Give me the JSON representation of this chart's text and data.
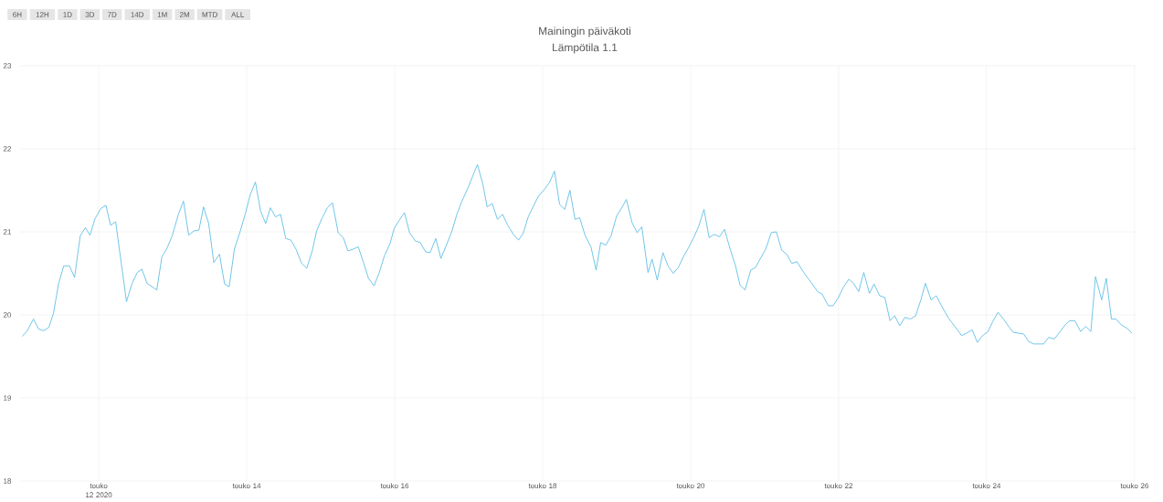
{
  "chart_data": {
    "type": "line",
    "title": "Mainingin päiväkoti",
    "subtitle": "Lämpötila 1.1",
    "annotations": [
      "6H",
      "12H",
      "1D",
      "3D",
      "7D",
      "14D",
      "1M",
      "2M",
      "MTD",
      "ALL"
    ],
    "color": "#4db8e3",
    "grid": true,
    "xlim": [
      "2020-05-10T22:30",
      "2020-05-26T00:20"
    ],
    "ylim": [
      18,
      23
    ],
    "yticks": [
      18,
      19,
      20,
      21,
      22,
      23
    ],
    "xticks": [
      {
        "value": "2020-05-12",
        "label": "touko 12 2020"
      },
      {
        "value": "2020-05-14",
        "label": "touko 14"
      },
      {
        "value": "2020-05-16",
        "label": "touko 16"
      },
      {
        "value": "2020-05-18",
        "label": "touko 18"
      },
      {
        "value": "2020-05-20",
        "label": "touko 20"
      },
      {
        "value": "2020-05-22",
        "label": "touko 22"
      },
      {
        "value": "2020-05-24",
        "label": "touko 24"
      },
      {
        "value": "2020-05-26",
        "label": "touko 26"
      }
    ],
    "x": [
      "2020-05-10T23:10",
      "2020-05-11T00:50",
      "2020-05-11T02:50",
      "2020-05-11T04:30",
      "2020-05-11T06:10",
      "2020-05-11T07:50",
      "2020-05-11T09:20",
      "2020-05-11T11:00",
      "2020-05-11T12:40",
      "2020-05-11T14:30",
      "2020-05-11T16:10",
      "2020-05-11T18:00",
      "2020-05-11T19:40",
      "2020-05-11T21:10",
      "2020-05-11T22:50",
      "2020-05-12T00:40",
      "2020-05-12T02:20",
      "2020-05-12T03:50",
      "2020-05-12T05:30",
      "2020-05-12T09:00",
      "2020-05-12T10:50",
      "2020-05-12T12:30",
      "2020-05-12T14:00",
      "2020-05-12T15:40",
      "2020-05-12T18:50",
      "2020-05-12T20:30",
      "2020-05-12T22:00",
      "2020-05-12T23:50",
      "2020-05-13T01:50",
      "2020-05-13T03:30",
      "2020-05-13T05:10",
      "2020-05-13T06:50",
      "2020-05-13T08:30",
      "2020-05-13T10:00",
      "2020-05-13T11:40",
      "2020-05-13T13:20",
      "2020-05-13T15:10",
      "2020-05-13T16:50",
      "2020-05-13T18:20",
      "2020-05-13T20:00",
      "2020-05-13T21:50",
      "2020-05-13T23:30",
      "2020-05-14T01:10",
      "2020-05-14T02:50",
      "2020-05-14T04:30",
      "2020-05-14T06:10",
      "2020-05-14T07:40",
      "2020-05-14T09:20",
      "2020-05-14T11:00",
      "2020-05-14T12:40",
      "2020-05-14T14:20",
      "2020-05-14T16:00",
      "2020-05-14T17:50",
      "2020-05-14T19:30",
      "2020-05-14T21:20",
      "2020-05-14T22:40",
      "2020-05-15T00:30",
      "2020-05-15T02:10",
      "2020-05-15T03:50",
      "2020-05-15T05:40",
      "2020-05-15T07:20",
      "2020-05-15T08:50",
      "2020-05-15T10:30",
      "2020-05-15T12:10",
      "2020-05-15T14:00",
      "2020-05-15T15:30",
      "2020-05-15T17:20",
      "2020-05-15T19:00",
      "2020-05-15T20:40",
      "2020-05-15T22:30",
      "2020-05-15T23:50",
      "2020-05-16T01:40",
      "2020-05-16T03:10",
      "2020-05-16T04:50",
      "2020-05-16T06:40",
      "2020-05-16T08:20",
      "2020-05-16T10:00",
      "2020-05-16T11:30",
      "2020-05-16T13:20",
      "2020-05-16T15:00",
      "2020-05-16T16:40",
      "2020-05-16T18:30",
      "2020-05-16T20:10",
      "2020-05-16T21:50",
      "2020-05-16T23:40",
      "2020-05-17T02:50",
      "2020-05-17T04:30",
      "2020-05-17T06:00",
      "2020-05-17T07:40",
      "2020-05-17T09:20",
      "2020-05-17T11:00",
      "2020-05-17T12:40",
      "2020-05-17T14:30",
      "2020-05-17T16:10",
      "2020-05-17T17:40",
      "2020-05-17T19:20",
      "2020-05-17T21:00",
      "2020-05-17T22:40",
      "2020-05-18T00:20",
      "2020-05-18T02:10",
      "2020-05-18T03:50",
      "2020-05-18T05:30",
      "2020-05-18T07:10",
      "2020-05-18T08:50",
      "2020-05-18T10:30",
      "2020-05-18T12:00",
      "2020-05-18T13:50",
      "2020-05-18T15:40",
      "2020-05-18T17:20",
      "2020-05-18T18:50",
      "2020-05-18T20:30",
      "2020-05-18T22:10",
      "2020-05-19T00:00",
      "2020-05-19T01:30",
      "2020-05-19T03:10",
      "2020-05-19T05:00",
      "2020-05-19T06:40",
      "2020-05-19T08:10",
      "2020-05-19T10:10",
      "2020-05-19T11:30",
      "2020-05-19T13:10",
      "2020-05-19T15:00",
      "2020-05-19T16:40",
      "2020-05-19T18:20",
      "2020-05-19T20:00",
      "2020-05-19T21:40",
      "2020-05-19T23:20",
      "2020-05-20T01:00",
      "2020-05-20T02:40",
      "2020-05-20T04:20",
      "2020-05-20T06:00",
      "2020-05-20T07:40",
      "2020-05-20T09:20",
      "2020-05-20T11:00",
      "2020-05-20T12:50",
      "2020-05-20T14:30",
      "2020-05-20T16:00",
      "2020-05-20T17:40",
      "2020-05-20T19:30",
      "2020-05-20T21:00",
      "2020-05-20T22:40",
      "2020-05-21T00:20",
      "2020-05-21T02:10",
      "2020-05-21T03:50",
      "2020-05-21T05:30",
      "2020-05-21T07:10",
      "2020-05-21T08:50",
      "2020-05-21T10:30",
      "2020-05-21T12:00",
      "2020-05-21T13:40",
      "2020-05-21T15:20",
      "2020-05-21T17:10",
      "2020-05-21T18:40",
      "2020-05-21T20:40",
      "2020-05-21T22:10",
      "2020-05-21T23:50",
      "2020-05-22T01:30",
      "2020-05-22T03:20",
      "2020-05-22T04:50",
      "2020-05-22T06:30",
      "2020-05-22T08:10",
      "2020-05-22T10:00",
      "2020-05-22T11:30",
      "2020-05-22T13:20",
      "2020-05-22T15:00",
      "2020-05-22T16:40",
      "2020-05-22T18:10",
      "2020-05-22T19:50",
      "2020-05-22T21:30",
      "2020-05-22T23:20",
      "2020-05-23T01:00",
      "2020-05-23T02:40",
      "2020-05-23T04:10",
      "2020-05-23T06:00",
      "2020-05-23T07:40",
      "2020-05-23T09:40",
      "2020-05-23T11:40",
      "2020-05-23T13:30",
      "2020-05-23T15:10",
      "2020-05-23T15:50",
      "2020-05-23T17:30",
      "2020-05-23T19:20",
      "2020-05-23T21:00",
      "2020-05-23T22:40",
      "2020-05-24T00:30",
      "2020-05-24T02:00",
      "2020-05-24T03:40",
      "2020-05-24T05:30",
      "2020-05-24T07:10",
      "2020-05-24T08:40",
      "2020-05-24T10:20",
      "2020-05-24T12:00",
      "2020-05-24T13:40",
      "2020-05-24T15:20",
      "2020-05-24T17:00",
      "2020-05-24T18:30",
      "2020-05-24T20:10",
      "2020-05-24T22:00",
      "2020-05-24T23:40",
      "2020-05-25T01:30",
      "2020-05-25T03:00",
      "2020-05-25T04:40",
      "2020-05-25T06:30",
      "2020-05-25T08:10",
      "2020-05-25T09:50",
      "2020-05-25T11:20",
      "2020-05-25T13:20",
      "2020-05-25T14:50",
      "2020-05-25T16:30",
      "2020-05-25T18:00",
      "2020-05-25T19:40",
      "2020-05-25T21:30",
      "2020-05-25T23:10"
    ],
    "values": [
      19.74,
      19.81,
      19.95,
      19.83,
      19.81,
      19.85,
      20.02,
      20.38,
      20.59,
      20.59,
      20.45,
      20.95,
      21.05,
      20.96,
      21.16,
      21.28,
      21.32,
      21.08,
      21.12,
      20.16,
      20.38,
      20.51,
      20.55,
      20.38,
      20.3,
      20.7,
      20.79,
      20.95,
      21.21,
      21.37,
      20.96,
      21.01,
      21.02,
      21.3,
      21.1,
      20.63,
      20.73,
      20.37,
      20.34,
      20.79,
      21.0,
      21.21,
      21.45,
      21.6,
      21.25,
      21.1,
      21.29,
      21.18,
      21.21,
      20.92,
      20.9,
      20.79,
      20.62,
      20.56,
      20.78,
      21.01,
      21.17,
      21.29,
      21.35,
      20.99,
      20.93,
      20.77,
      20.79,
      20.82,
      20.62,
      20.44,
      20.35,
      20.51,
      20.71,
      20.86,
      21.04,
      21.15,
      21.23,
      20.99,
      20.89,
      20.87,
      20.76,
      20.75,
      20.92,
      20.68,
      20.83,
      21.0,
      21.21,
      21.37,
      21.52,
      21.81,
      21.59,
      21.3,
      21.34,
      21.15,
      21.21,
      21.08,
      20.97,
      20.9,
      20.98,
      21.18,
      21.31,
      21.43,
      21.5,
      21.59,
      21.73,
      21.33,
      21.27,
      21.5,
      21.15,
      21.17,
      20.95,
      20.82,
      20.54,
      20.87,
      20.84,
      20.95,
      21.19,
      21.28,
      21.39,
      21.11,
      20.99,
      21.06,
      20.51,
      20.67,
      20.42,
      20.75,
      20.59,
      20.5,
      20.57,
      20.7,
      20.81,
      20.93,
      21.07,
      21.27,
      20.93,
      20.97,
      20.94,
      21.03,
      20.79,
      20.6,
      20.36,
      20.3,
      20.54,
      20.57,
      20.68,
      20.79,
      20.99,
      21.0,
      20.78,
      20.73,
      20.62,
      20.64,
      20.55,
      20.46,
      20.38,
      20.28,
      20.25,
      20.11,
      20.11,
      20.2,
      20.33,
      20.43,
      20.38,
      20.28,
      20.51,
      20.26,
      20.37,
      20.23,
      20.21,
      19.93,
      19.99,
      19.87,
      19.97,
      19.95,
      19.99,
      20.18,
      20.38,
      20.18,
      20.23,
      20.09,
      19.96,
      19.87,
      19.79,
      19.75,
      19.78,
      19.82,
      19.67,
      19.75,
      19.8,
      19.92,
      20.03,
      19.95,
      19.86,
      19.79,
      19.78,
      19.77,
      19.68,
      19.65,
      19.65,
      19.65,
      19.73,
      19.71,
      19.79,
      19.88,
      19.93,
      19.93,
      19.8,
      19.86,
      19.8,
      20.46,
      20.18,
      20.44,
      19.95,
      19.95,
      19.88,
      19.84,
      19.78
    ]
  }
}
